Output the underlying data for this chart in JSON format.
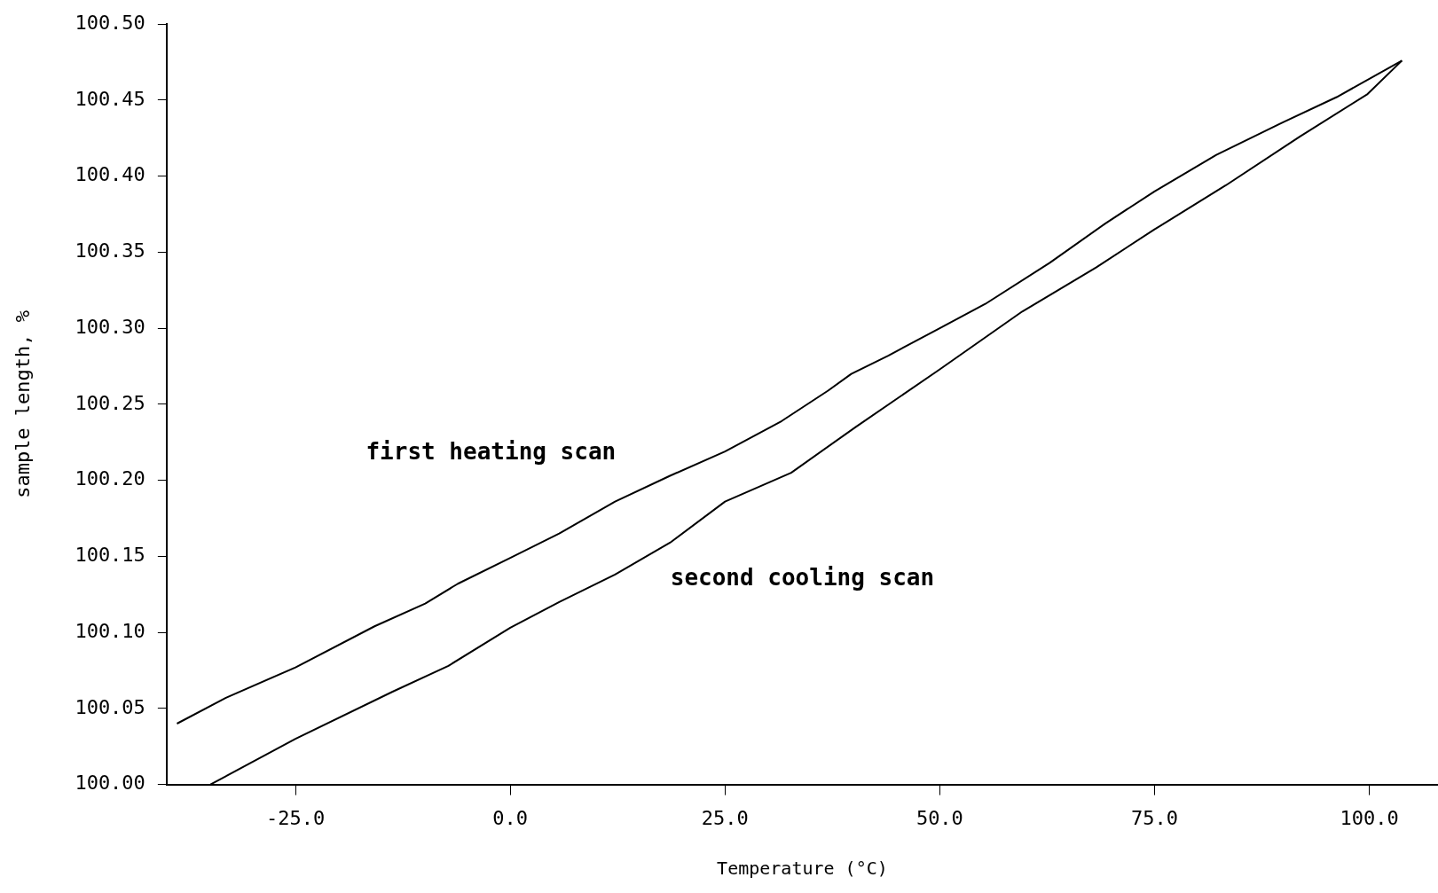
{
  "chart_data": {
    "type": "line",
    "xlabel": "Temperature (°C)",
    "ylabel": "sample length, %",
    "xlim": [
      -40,
      108
    ],
    "ylim": [
      100.0,
      100.5
    ],
    "xticks": [
      {
        "value": -25,
        "label": "-25.0"
      },
      {
        "value": 0,
        "label": "0.0"
      },
      {
        "value": 25,
        "label": "25.0"
      },
      {
        "value": 50,
        "label": "50.0"
      },
      {
        "value": 75,
        "label": "75.0"
      },
      {
        "value": 100,
        "label": "100.0"
      }
    ],
    "yticks": [
      {
        "value": 100.0,
        "label": "100.00"
      },
      {
        "value": 100.05,
        "label": "100.05"
      },
      {
        "value": 100.1,
        "label": "100.10"
      },
      {
        "value": 100.15,
        "label": "100.15"
      },
      {
        "value": 100.2,
        "label": "100.20"
      },
      {
        "value": 100.25,
        "label": "100.25"
      },
      {
        "value": 100.3,
        "label": "100.30"
      },
      {
        "value": 100.35,
        "label": "100.35"
      },
      {
        "value": 100.4,
        "label": "100.40"
      },
      {
        "value": 100.45,
        "label": "100.45"
      },
      {
        "value": 100.5,
        "label": "100.50"
      }
    ],
    "grid": false,
    "legend": false,
    "marker": "none",
    "line_style": "solid",
    "series": [
      {
        "color": "#000000",
        "x": [
          -38.8,
          -33.1,
          -25,
          -15.8,
          -9.9,
          -6.1,
          0,
          5.7,
          12.2,
          18.6,
          25,
          31.6,
          37,
          39.7,
          44,
          50,
          55.3,
          62.8,
          69.3,
          75,
          82.2,
          89.8,
          96.2,
          103.8
        ],
        "values": [
          100.04,
          100.057,
          100.077,
          100.104,
          100.119,
          100.132,
          100.149,
          100.165,
          100.186,
          100.203,
          100.219,
          100.239,
          100.259,
          100.27,
          100.282,
          100.3,
          100.316,
          100.343,
          100.369,
          100.39,
          100.414,
          100.435,
          100.452,
          100.476
        ]
      },
      {
        "color": "#000000",
        "x": [
          103.8,
          99.8,
          91.9,
          83.3,
          75,
          68.2,
          59.6,
          50,
          40.2,
          32.7,
          25,
          18.6,
          12.2,
          5.7,
          0,
          -7.2,
          -13.7,
          -25,
          -34.9
        ],
        "values": [
          100.476,
          100.454,
          100.426,
          100.394,
          100.365,
          100.34,
          100.311,
          100.273,
          100.235,
          100.205,
          100.186,
          100.159,
          100.138,
          100.12,
          100.103,
          100.078,
          100.061,
          100.03,
          100.0
        ]
      }
    ],
    "annotations": [
      "first heating scan",
      "second cooling scan"
    ]
  }
}
